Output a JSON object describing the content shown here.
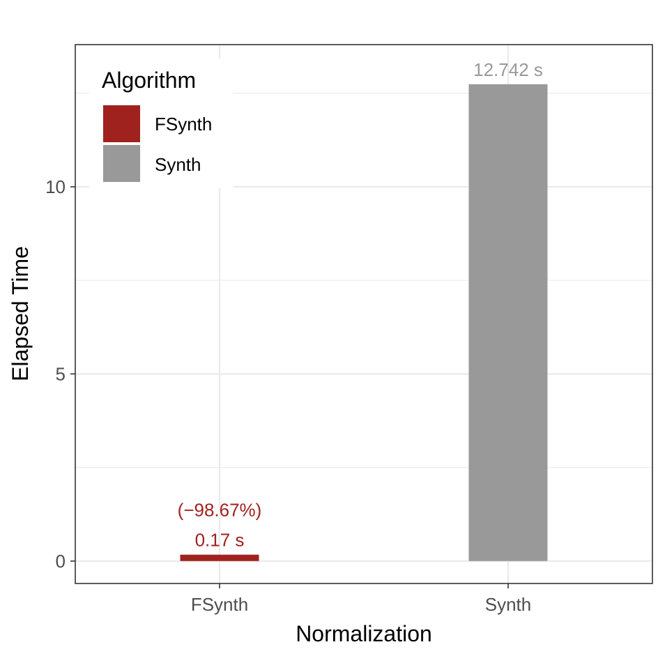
{
  "chart_data": {
    "type": "bar",
    "categories": [
      "FSynth",
      "Synth"
    ],
    "values": [
      0.17,
      12.742
    ],
    "value_labels": [
      "0.17 s",
      "12.742 s"
    ],
    "percent_labels": [
      "(−98.67%)",
      ""
    ],
    "xlabel": "Normalization",
    "ylabel": "Elapsed Time",
    "ylim": [
      -0.6,
      13.8
    ],
    "yticks": [
      0,
      5,
      10
    ],
    "ytick_labels": [
      "0",
      "5",
      "10"
    ],
    "grid": true,
    "legend": {
      "title": "Algorithm",
      "placement": "top-left",
      "entries": [
        "FSynth",
        "Synth"
      ]
    },
    "colors": {
      "FSynth": "#a0221e",
      "Synth": "#999999",
      "grid": "#ebebeb",
      "panel_border": "#333333"
    }
  }
}
